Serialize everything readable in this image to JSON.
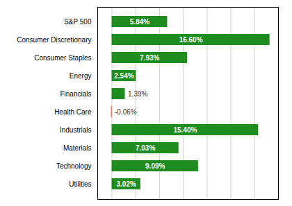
{
  "chart_data": {
    "type": "bar",
    "orientation": "horizontal",
    "categories": [
      "S&P 500",
      "Consumer Discretionary",
      "Consumer Staples",
      "Energy",
      "Financials",
      "Health Care",
      "Industrials",
      "Materials",
      "Technology",
      "Utilities"
    ],
    "values": [
      5.84,
      16.6,
      7.93,
      2.54,
      1.39,
      -0.06,
      15.4,
      7.03,
      9.09,
      3.02
    ],
    "value_labels": [
      "5.84%",
      "16.60%",
      "7.93%",
      "2.54%",
      "1.39%",
      "-0.06%",
      "15.40%",
      "7.03%",
      "9.09%",
      "3.02%"
    ],
    "colors": [
      "#1e8c1e",
      "#1e8c1e",
      "#1e8c1e",
      "#1e8c1e",
      "#1e8c1e",
      "#cc2200",
      "#1e8c1e",
      "#1e8c1e",
      "#1e8c1e",
      "#1e8c1e"
    ],
    "xlim": [
      -1.5,
      17.5
    ],
    "xticks": [
      0,
      2.5,
      5,
      7.5,
      10,
      12.5,
      15,
      17.5
    ],
    "grid": true,
    "data_labels": true,
    "tick_labels": "y"
  }
}
